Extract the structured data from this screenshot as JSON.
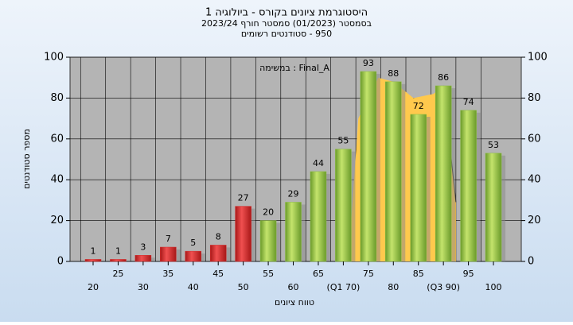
{
  "chart_data": {
    "type": "bar",
    "title": "היסטוגרמת ציונים בקורס - ביולוגיה 1",
    "subtitle": "בסמסטר (01/2023) סמסטר חורף 2023/24",
    "subtitle2": "950 - סטודנטים רשומים",
    "annotation": "Final_A : במשימה",
    "x_label": "טווח ציונים",
    "y_label": "מספר סטודנטים",
    "categories": [
      "20",
      "25",
      "30",
      "35",
      "40",
      "45",
      "50",
      "55",
      "60",
      "65",
      "(Q1 70)",
      "75",
      "80",
      "85",
      "(Q3 90)",
      "95",
      "100"
    ],
    "values": [
      1,
      1,
      3,
      7,
      5,
      8,
      27,
      20,
      29,
      44,
      55,
      93,
      88,
      72,
      86,
      74,
      53
    ],
    "bar_colors": [
      "#d42a2a",
      "#d42a2a",
      "#d42a2a",
      "#d42a2a",
      "#d42a2a",
      "#d42a2a",
      "#d42a2a",
      "#8cbf3f",
      "#8cbf3f",
      "#8cbf3f",
      "#8cbf3f",
      "#8cbf3f",
      "#8cbf3f",
      "#8cbf3f",
      "#8cbf3f",
      "#8cbf3f",
      "#8cbf3f"
    ],
    "area": {
      "color": "#ffc94d",
      "x": [
        71,
        73,
        77,
        80,
        84,
        88,
        90,
        92.5
      ],
      "values": [
        0,
        70,
        90,
        88,
        80,
        82,
        86,
        29
      ]
    },
    "ylim": [
      0,
      100
    ],
    "yticks": [
      0,
      20,
      40,
      60,
      80,
      100
    ],
    "y2lim": [
      0,
      100
    ],
    "y2ticks": [
      0,
      20,
      40,
      60,
      80,
      100
    ],
    "grid": true
  }
}
